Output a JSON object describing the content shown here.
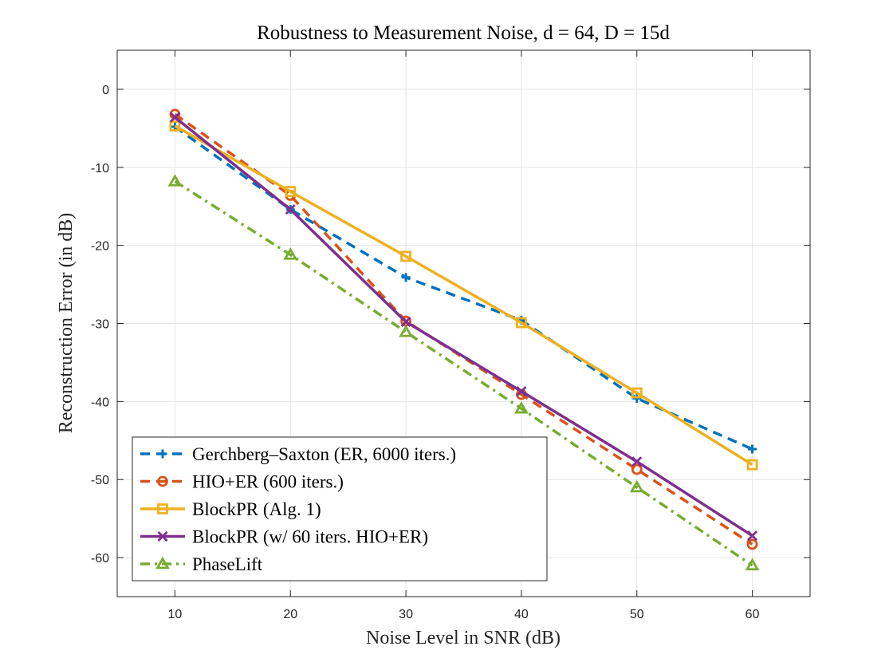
{
  "chart_data": {
    "type": "line",
    "title": "Robustness to Measurement Noise, d = 64, D = 15d",
    "xlabel": "Noise Level in SNR (dB)",
    "ylabel": "Reconstruction Error (in dB)",
    "xlim": [
      5,
      65
    ],
    "ylim": [
      -65,
      5
    ],
    "xticks": [
      10,
      20,
      30,
      40,
      50,
      60
    ],
    "yticks": [
      0,
      -10,
      -20,
      -30,
      -40,
      -50,
      -60
    ],
    "grid": true,
    "legend_position": "bottom-left",
    "x": [
      10,
      20,
      30,
      40,
      50,
      60
    ],
    "series": [
      {
        "name": "Gerchberg–Saxton (ER, 6000 iters.)",
        "values": [
          -4.8,
          -15.4,
          -24.1,
          -29.6,
          -39.6,
          -46.1
        ],
        "color": "#0072BD",
        "dash": "dashed",
        "marker": "plus"
      },
      {
        "name": "HIO+ER (600 iters.)",
        "values": [
          -3.2,
          -13.6,
          -29.7,
          -39.1,
          -48.7,
          -58.3
        ],
        "color": "#D95319",
        "dash": "dashed",
        "marker": "circle"
      },
      {
        "name": "BlockPR (Alg. 1)",
        "values": [
          -4.7,
          -13.1,
          -21.4,
          -29.9,
          -38.9,
          -48.1
        ],
        "color": "#EDB120",
        "dash": "solid",
        "marker": "square"
      },
      {
        "name": "BlockPR (w/ 60 iters. HIO+ER)",
        "values": [
          -3.6,
          -15.4,
          -29.8,
          -38.7,
          -47.7,
          -57.2
        ],
        "color": "#7E2F8E",
        "dash": "solid",
        "marker": "x"
      },
      {
        "name": "PhaseLift",
        "values": [
          -11.8,
          -21.2,
          -31.1,
          -40.9,
          -51.0,
          -61.0
        ],
        "color": "#77AC30",
        "dash": "dashdot",
        "marker": "triangle"
      }
    ]
  }
}
